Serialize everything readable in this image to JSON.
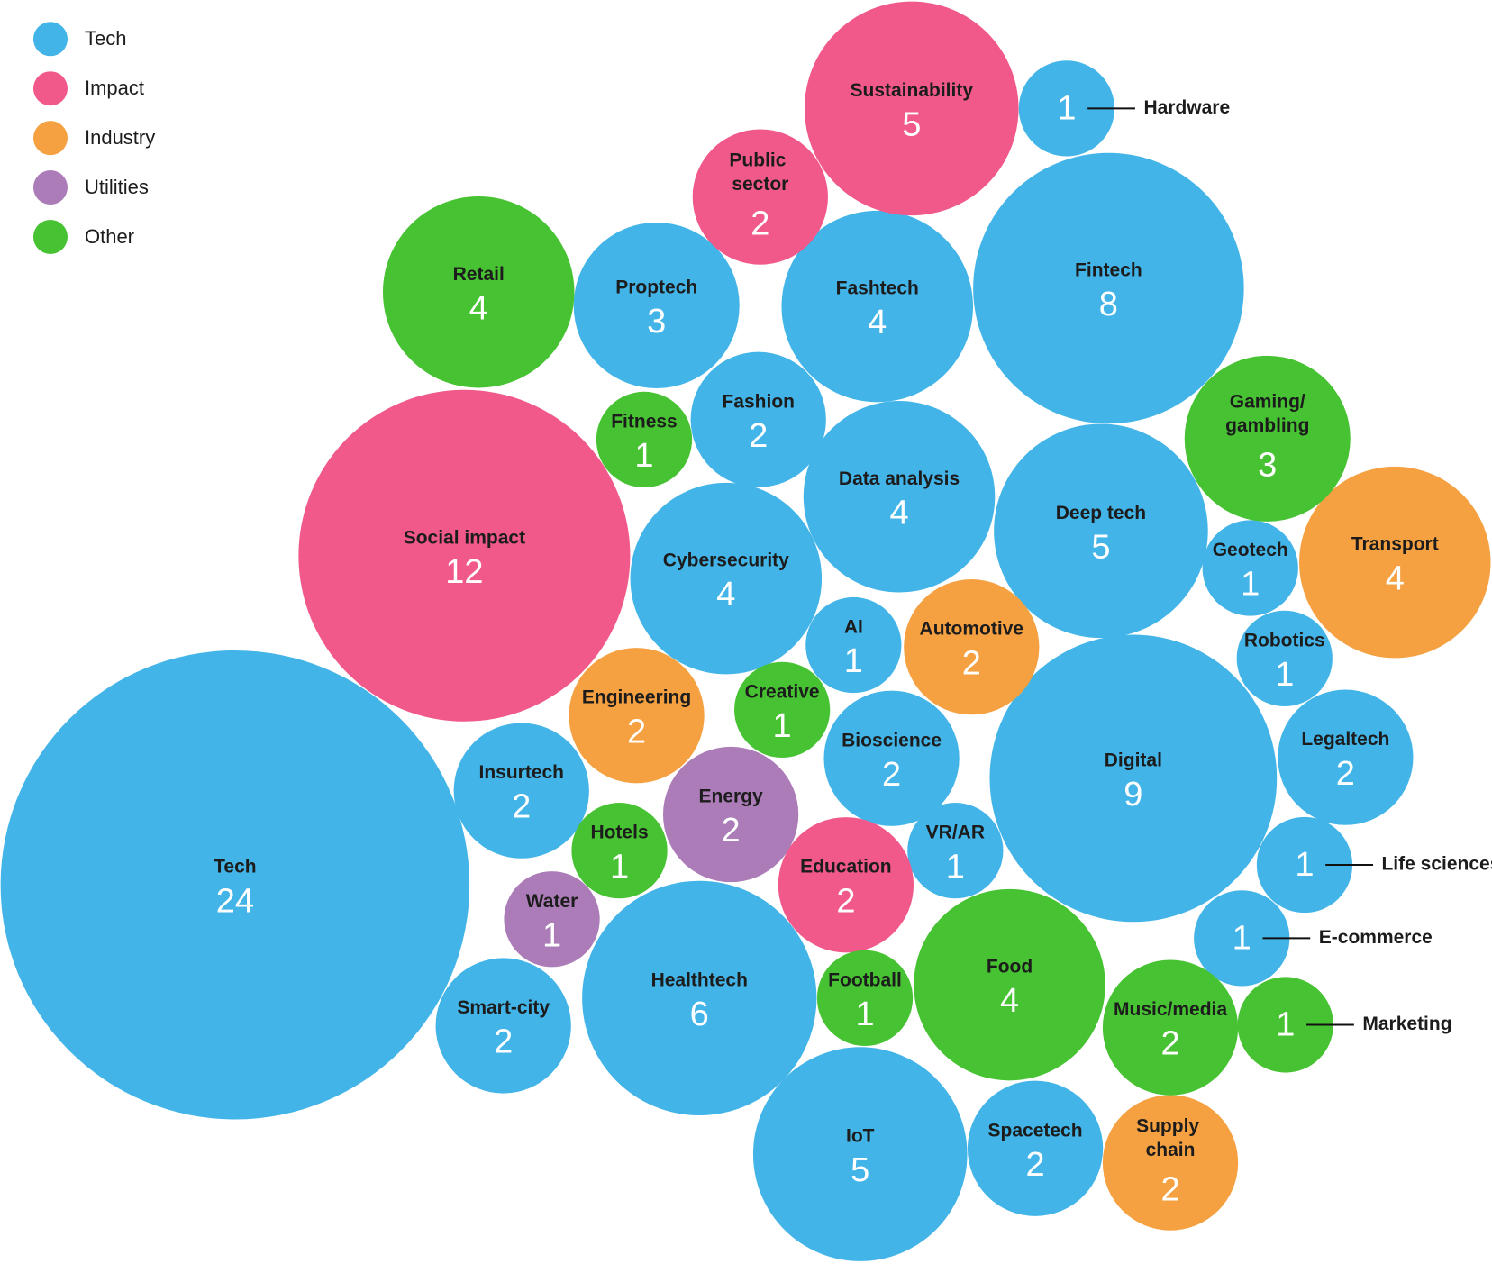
{
  "chart_data": {
    "type": "bubble",
    "series": [
      {
        "name": "Tech",
        "color": "#42b4e8",
        "labels": [
          "Hardware",
          "Fintech",
          "Fashtech",
          "Proptech",
          "Fashion",
          "Data analysis",
          "Deep tech",
          "Geotech",
          "Cybersecurity",
          "AI",
          "Robotics",
          "Digital",
          "Legaltech",
          "Bioscience",
          "Insurtech",
          "VR/AR",
          "Life sciences",
          "Tech",
          "E-commerce",
          "Healthtech",
          "Smart-city",
          "IoT",
          "Spacetech"
        ],
        "values": [
          1,
          8,
          4,
          3,
          2,
          4,
          5,
          1,
          4,
          1,
          1,
          9,
          2,
          2,
          2,
          1,
          1,
          24,
          1,
          6,
          2,
          5,
          2
        ]
      },
      {
        "name": "Impact",
        "color": "#f0598a",
        "labels": [
          "Sustainability",
          "Public sector",
          "Social impact",
          "Education"
        ],
        "values": [
          5,
          2,
          12,
          2
        ]
      },
      {
        "name": "Industry",
        "color": "#f5a142",
        "labels": [
          "Transport",
          "Automotive",
          "Engineering",
          "Supply chain"
        ],
        "values": [
          4,
          2,
          2,
          2
        ]
      },
      {
        "name": "Utilities",
        "color": "#ab7cb8",
        "labels": [
          "Energy",
          "Water"
        ],
        "values": [
          2,
          1
        ]
      },
      {
        "name": "Other",
        "color": "#47c232",
        "labels": [
          "Retail",
          "Fitness",
          "Gaming/gambling",
          "Creative",
          "Hotels",
          "Football",
          "Food",
          "Music/media",
          "Marketing"
        ],
        "values": [
          4,
          1,
          3,
          1,
          1,
          1,
          4,
          2,
          1
        ]
      }
    ]
  }
}
